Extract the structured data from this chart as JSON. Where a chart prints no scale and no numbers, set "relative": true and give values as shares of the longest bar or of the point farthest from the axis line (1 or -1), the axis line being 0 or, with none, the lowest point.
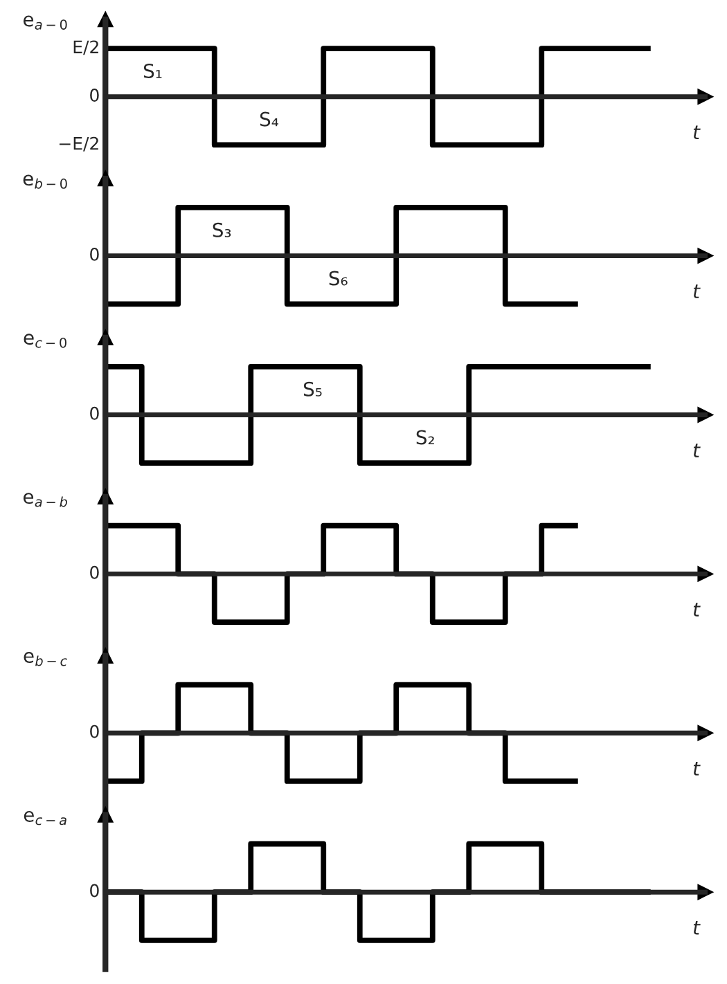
{
  "chart_data": [
    {
      "type": "step",
      "ylabel": "e$_{a−0}$",
      "xlabel": "t",
      "relative": true,
      "categories": [
        null,
        null,
        null,
        null,
        null,
        null,
        null,
        null,
        null,
        null,
        null,
        null,
        null,
        null,
        null,
        null
      ],
      "series": [
        {
          "color": "#000000",
          "values": [
            1,
            1,
            1,
            -1,
            -1,
            -1,
            1,
            1,
            1,
            -1,
            -1,
            -1,
            1,
            1,
            1,
            1
          ]
        }
      ],
      "annotations": [
        "E/2",
        "0",
        "−E/2",
        "S₁",
        "S₄"
      ]
    },
    {
      "type": "step",
      "ylabel": "e$_{b−0}$",
      "xlabel": "t",
      "relative": true,
      "categories": [
        null,
        null,
        null,
        null,
        null,
        null,
        null,
        null,
        null,
        null,
        null,
        null,
        null,
        null
      ],
      "series": [
        {
          "color": "#000000",
          "values": [
            -1,
            -1,
            1,
            1,
            1,
            -1,
            -1,
            -1,
            1,
            1,
            1,
            -1,
            -1,
            -1
          ]
        }
      ],
      "annotations": [
        "0",
        "S₃",
        "S₆"
      ]
    },
    {
      "type": "step",
      "ylabel": "e$_{c−0}$",
      "xlabel": "t",
      "relative": true,
      "categories": [
        null,
        null,
        null,
        null,
        null,
        null,
        null,
        null,
        null,
        null,
        null,
        null,
        null,
        null,
        null,
        null
      ],
      "series": [
        {
          "color": "#000000",
          "values": [
            1,
            -1,
            -1,
            -1,
            1,
            1,
            1,
            -1,
            -1,
            -1,
            1,
            1,
            1,
            1,
            1,
            1
          ]
        }
      ],
      "annotations": [
        "0",
        "S₅",
        "S₂"
      ]
    },
    {
      "type": "step",
      "ylabel": "e$_{a−b}$",
      "xlabel": "t",
      "relative": true,
      "categories": [
        null,
        null,
        null,
        null,
        null,
        null,
        null,
        null,
        null,
        null,
        null,
        null,
        null,
        null
      ],
      "series": [
        {
          "color": "#000000",
          "values": [
            1,
            1,
            0,
            -1,
            -1,
            0,
            1,
            1,
            0,
            -1,
            -1,
            0,
            1,
            1
          ]
        }
      ],
      "annotations": [
        "0"
      ]
    },
    {
      "type": "step",
      "ylabel": "e$_{b−c}$",
      "xlabel": "t",
      "relative": true,
      "categories": [
        null,
        null,
        null,
        null,
        null,
        null,
        null,
        null,
        null,
        null,
        null,
        null,
        null,
        null
      ],
      "series": [
        {
          "color": "#000000",
          "values": [
            -1,
            0,
            1,
            1,
            0,
            -1,
            -1,
            0,
            1,
            1,
            0,
            -1,
            -1,
            -1
          ]
        }
      ],
      "annotations": [
        "0"
      ]
    },
    {
      "type": "step",
      "ylabel": "e$_{c−a}$",
      "xlabel": "t",
      "relative": true,
      "categories": [
        null,
        null,
        null,
        null,
        null,
        null,
        null,
        null,
        null,
        null,
        null,
        null,
        null,
        null,
        null,
        null
      ],
      "series": [
        {
          "color": "#000000",
          "values": [
            0,
            -1,
            -1,
            0,
            1,
            1,
            0,
            -1,
            -1,
            0,
            1,
            1,
            0,
            0,
            0,
            0
          ]
        }
      ],
      "annotations": [
        "0"
      ]
    }
  ]
}
